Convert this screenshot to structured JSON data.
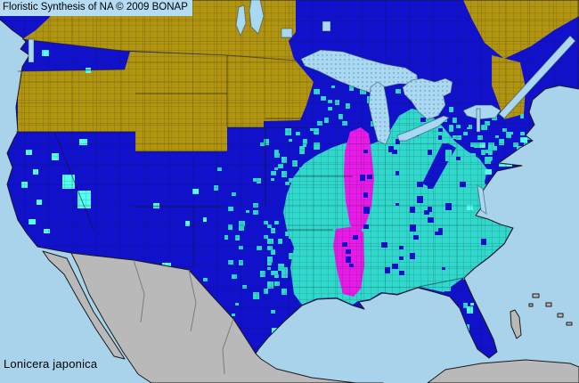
{
  "header": {
    "title": "Floristic Synthesis of NA © 2009 BONAP"
  },
  "footer": {
    "species": "Lonicera japonica"
  },
  "map": {
    "palette": {
      "ocean": "#A9D3EA",
      "title_bar": "#B6DCF3",
      "lake": "#A9D8F2",
      "state_present": "#0F10D0",
      "county_present": "#2FD9CC",
      "county_rare": "#55FFF0",
      "noxious": "#E81AE8",
      "absent_state": "#B2950F",
      "outside_us": "#B9B9B9",
      "coastline": "#1A1A1A"
    }
  }
}
